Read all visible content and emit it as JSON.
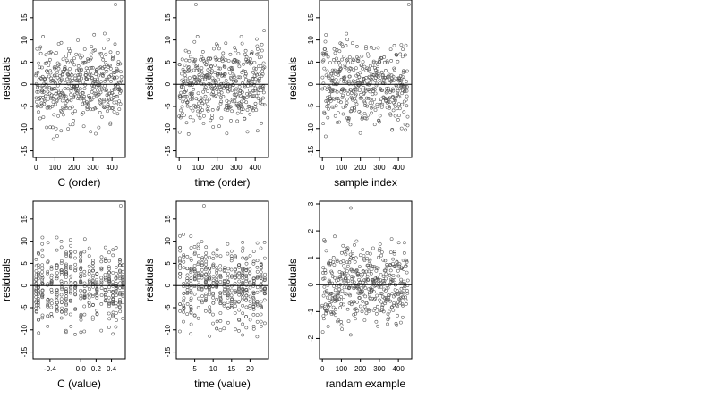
{
  "figure": {
    "layout": "2 rows x 3 columns of residual scatter plots",
    "background": "#ffffff",
    "point_color": "#555555",
    "line_color": "#000000"
  },
  "chart_data": [
    {
      "type": "scatter",
      "xlabel": "C (order)",
      "ylabel": "residuals",
      "xlim": [
        -15,
        470
      ],
      "ylim": [
        -16.5,
        19
      ],
      "xticks": [
        0,
        100,
        200,
        300,
        400
      ],
      "xtick_labels": [
        "0",
        "100",
        "200",
        "300",
        "400"
      ],
      "yticks": [
        -15,
        -10,
        -5,
        0,
        5,
        10,
        15
      ],
      "ytick_labels": [
        "-15",
        "-10",
        "-5",
        "0",
        "5",
        "10",
        "15"
      ],
      "hline": 0,
      "grid": false,
      "x_pattern": "index",
      "n": 450,
      "spread": 6,
      "seed": 11,
      "highlights": [
        [
          418,
          18
        ]
      ]
    },
    {
      "type": "scatter",
      "xlabel": "time (order)",
      "ylabel": "residuals",
      "xlim": [
        -15,
        470
      ],
      "ylim": [
        -16.5,
        19
      ],
      "xticks": [
        0,
        100,
        200,
        300,
        400
      ],
      "xtick_labels": [
        "0",
        "100",
        "200",
        "300",
        "400"
      ],
      "yticks": [
        -15,
        -10,
        -5,
        0,
        5,
        10,
        15
      ],
      "ytick_labels": [
        "-15",
        "-10",
        "-5",
        "0",
        "5",
        "10",
        "15"
      ],
      "hline": 0,
      "grid": false,
      "x_pattern": "index",
      "n": 450,
      "spread": 6,
      "seed": 22,
      "highlights": [
        [
          88,
          18
        ]
      ]
    },
    {
      "type": "scatter",
      "xlabel": "sample index",
      "ylabel": "residuals",
      "xlim": [
        -15,
        470
      ],
      "ylim": [
        -16.5,
        19
      ],
      "xticks": [
        0,
        100,
        200,
        300,
        400
      ],
      "xtick_labels": [
        "0",
        "100",
        "200",
        "300",
        "400"
      ],
      "yticks": [
        -15,
        -10,
        -5,
        0,
        5,
        10,
        15
      ],
      "ytick_labels": [
        "-15",
        "-10",
        "-5",
        "0",
        "5",
        "10",
        "15"
      ],
      "hline": 0,
      "grid": false,
      "x_pattern": "index",
      "n": 450,
      "spread": 6,
      "seed": 33,
      "highlights": [
        [
          455,
          18
        ]
      ]
    },
    {
      "type": "scatter",
      "xlabel": "C (value)",
      "ylabel": "residuals",
      "xlim": [
        -0.62,
        0.58
      ],
      "ylim": [
        -16.5,
        19
      ],
      "xticks": [
        -0.4,
        0.0,
        0.2,
        0.4
      ],
      "xtick_labels": [
        "-0.4",
        "0.0",
        "0.2",
        "0.4"
      ],
      "yticks": [
        -15,
        -10,
        -5,
        0,
        5,
        10,
        15
      ],
      "ytick_labels": [
        "-15",
        "-10",
        "-5",
        "0",
        "5",
        "10",
        "15"
      ],
      "hline": 0,
      "grid": false,
      "x_pattern": "discrete",
      "x_values": [
        -0.58,
        -0.55,
        -0.5,
        -0.43,
        -0.38,
        -0.31,
        -0.25,
        -0.19,
        -0.13,
        -0.07,
        0.0,
        0.05,
        0.11,
        0.16,
        0.21,
        0.27,
        0.32,
        0.37,
        0.42,
        0.46,
        0.51,
        0.55
      ],
      "n": 450,
      "spread": 6,
      "seed": 44,
      "highlights": [
        [
          0.52,
          18
        ]
      ]
    },
    {
      "type": "scatter",
      "xlabel": "time (value)",
      "ylabel": "residuals",
      "xlim": [
        0,
        25
      ],
      "ylim": [
        -16.5,
        19
      ],
      "xticks": [
        5,
        10,
        15,
        20
      ],
      "xtick_labels": [
        "5",
        "10",
        "15",
        "20"
      ],
      "yticks": [
        -15,
        -10,
        -5,
        0,
        5,
        10,
        15
      ],
      "ytick_labels": [
        "-15",
        "-10",
        "-5",
        "0",
        "5",
        "10",
        "15"
      ],
      "hline": 0,
      "grid": false,
      "x_pattern": "discrete",
      "x_values": [
        1,
        2,
        3,
        4,
        5,
        6,
        7,
        8,
        9,
        10,
        11,
        12,
        13,
        14,
        15,
        16,
        17,
        18,
        19,
        20,
        21,
        22,
        23,
        24
      ],
      "n": 450,
      "spread": 6,
      "seed": 55,
      "highlights": [
        [
          7.5,
          18
        ]
      ]
    },
    {
      "type": "scatter",
      "xlabel": "randam example",
      "ylabel": "residuals",
      "xlim": [
        -15,
        470
      ],
      "ylim": [
        -2.75,
        3.1
      ],
      "xticks": [
        0,
        100,
        200,
        300,
        400
      ],
      "xtick_labels": [
        "0",
        "100",
        "200",
        "300",
        "400"
      ],
      "yticks": [
        -2,
        -1,
        0,
        1,
        2,
        3
      ],
      "ytick_labels": [
        "-2",
        "-1",
        "0",
        "1",
        "2",
        "3"
      ],
      "hline": 0,
      "grid": false,
      "x_pattern": "index",
      "n": 450,
      "spread": 1,
      "seed": 66,
      "highlights": [
        [
          150,
          2.85
        ]
      ]
    }
  ]
}
